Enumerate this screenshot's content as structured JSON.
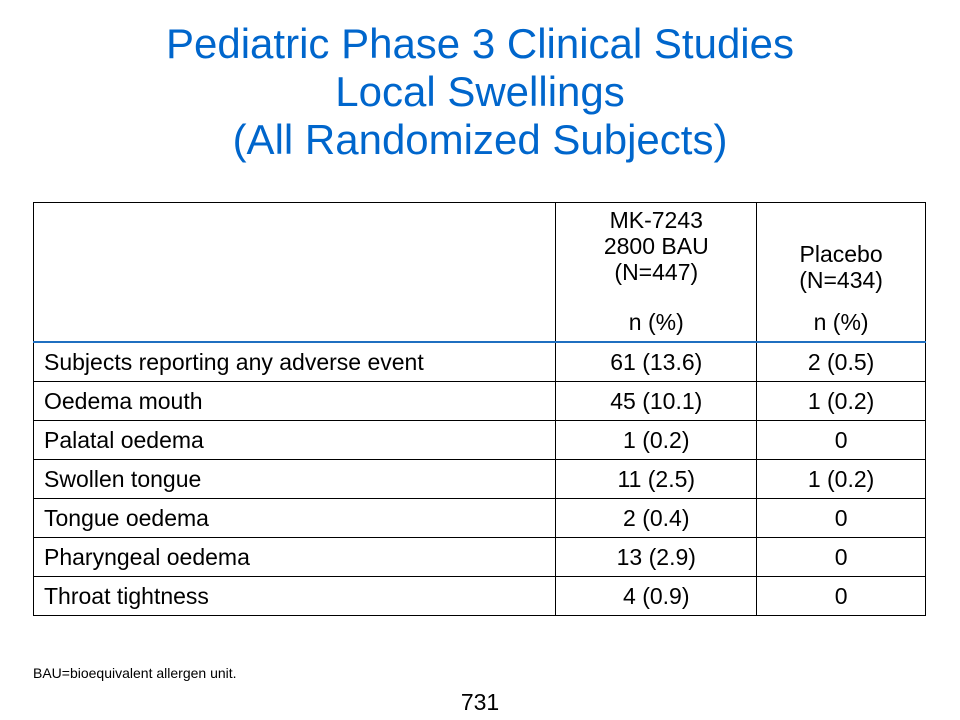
{
  "slide": {
    "title_lines": [
      "Pediatric Phase 3 Clinical Studies",
      "Local Swellings",
      "(All Randomized Subjects)"
    ],
    "title_color": "#0066CC",
    "table": {
      "header": {
        "col1": {
          "group_lines": [
            "MK-7243",
            "2800 BAU",
            "(N=447)"
          ],
          "unit": "n (%)"
        },
        "col2": {
          "group_lines": [
            "Placebo",
            "(N=434)"
          ],
          "unit": "n (%)"
        }
      },
      "rows": [
        {
          "label": "Subjects reporting any adverse event",
          "mk7243": "61 (13.6)",
          "placebo": "2 (0.5)"
        },
        {
          "label": "Oedema mouth",
          "mk7243": "45 (10.1)",
          "placebo": "1 (0.2)"
        },
        {
          "label": "Palatal oedema",
          "mk7243": "1 (0.2)",
          "placebo": "0"
        },
        {
          "label": "Swollen tongue",
          "mk7243": "11 (2.5)",
          "placebo": "1 (0.2)"
        },
        {
          "label": "Tongue oedema",
          "mk7243": "2 (0.4)",
          "placebo": "0"
        },
        {
          "label": "Pharyngeal oedema",
          "mk7243": "13 (2.9)",
          "placebo": "0"
        },
        {
          "label": "Throat tightness",
          "mk7243": "4 (0.9)",
          "placebo": "0"
        }
      ]
    },
    "footnote": "BAU=bioequivalent allergen unit.",
    "page_number": "731"
  }
}
